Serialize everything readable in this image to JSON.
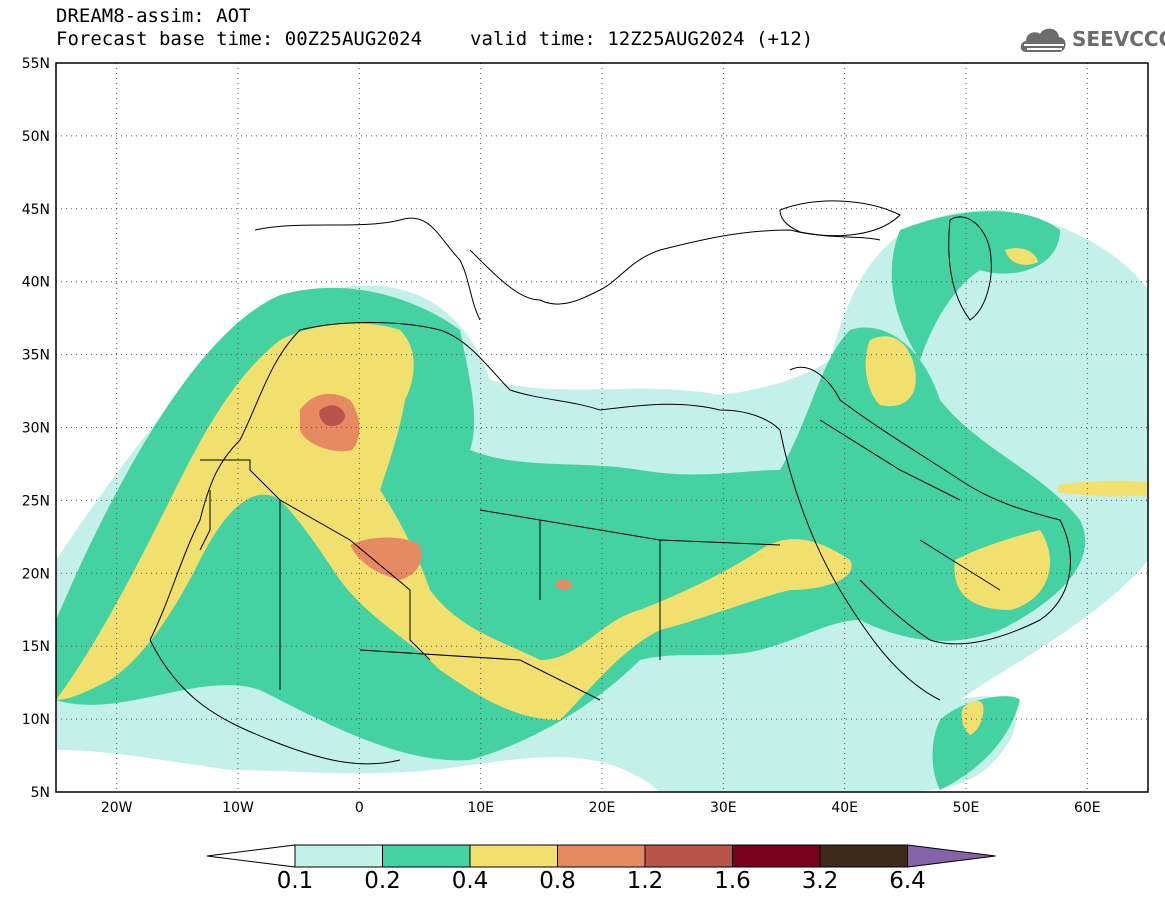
{
  "header": {
    "line1": "DREAM8-assim: AOT",
    "base_time": "Forecast base time: 00Z25AUG2024",
    "valid_time": "valid time: 12Z25AUG2024 (+12)"
  },
  "logo": {
    "text": "SEEVCCC",
    "icon": "cloud-icon"
  },
  "axes": {
    "lat_labels": [
      "55N",
      "50N",
      "45N",
      "40N",
      "35N",
      "30N",
      "25N",
      "20N",
      "15N",
      "10N",
      "5N"
    ],
    "lon_labels": [
      "20W",
      "10W",
      "0",
      "10E",
      "20E",
      "30E",
      "40E",
      "50E",
      "60E"
    ],
    "lat_range": [
      5,
      55
    ],
    "lon_range": [
      -25,
      65
    ],
    "grid": true
  },
  "colorbar": {
    "labels": [
      "0.1",
      "0.2",
      "0.4",
      "0.8",
      "1.2",
      "1.6",
      "3.2",
      "6.4"
    ],
    "colors": [
      "#ffffff",
      "#c4f0ea",
      "#45d2a2",
      "#f2e06e",
      "#e68a64",
      "#b9544a",
      "#78001d",
      "#3f2a1a",
      "#8663a8"
    ]
  }
}
